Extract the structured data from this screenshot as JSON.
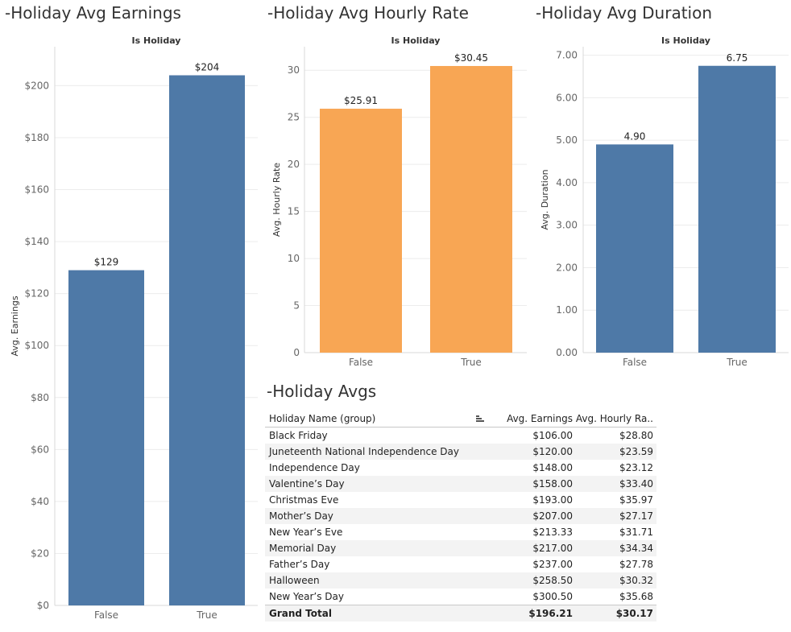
{
  "chart_data": [
    {
      "type": "bar",
      "title": "-Holiday Avg Earnings",
      "header": "Is Holiday",
      "ylabel": "Avg. Earnings",
      "categories": [
        "False",
        "True"
      ],
      "values": [
        129,
        204
      ],
      "value_labels": [
        "$129",
        "$204"
      ],
      "ylim": [
        0,
        215
      ],
      "yticks": [
        0,
        20,
        40,
        60,
        80,
        100,
        120,
        140,
        160,
        180,
        200
      ],
      "ytick_labels": [
        "$0",
        "$20",
        "$40",
        "$60",
        "$80",
        "$100",
        "$120",
        "$140",
        "$160",
        "$180",
        "$200"
      ],
      "color": "#4e79a7",
      "grid": true
    },
    {
      "type": "bar",
      "title": "-Holiday Avg Hourly Rate",
      "header": "Is Holiday",
      "ylabel": "Avg. Hourly Rate",
      "categories": [
        "False",
        "True"
      ],
      "values": [
        25.91,
        30.45
      ],
      "value_labels": [
        "$25.91",
        "$30.45"
      ],
      "ylim": [
        0,
        32.5
      ],
      "yticks": [
        0,
        5,
        10,
        15,
        20,
        25,
        30
      ],
      "ytick_labels": [
        "0",
        "5",
        "10",
        "15",
        "20",
        "25",
        "30"
      ],
      "color": "#f8a654",
      "grid": true
    },
    {
      "type": "bar",
      "title": "-Holiday Avg Duration",
      "header": "Is Holiday",
      "ylabel": "Avg. Duration",
      "categories": [
        "False",
        "True"
      ],
      "values": [
        4.9,
        6.75
      ],
      "value_labels": [
        "4.90",
        "6.75"
      ],
      "ylim": [
        0,
        7.2
      ],
      "yticks": [
        0,
        1,
        2,
        3,
        4,
        5,
        6,
        7
      ],
      "ytick_labels": [
        "0.00",
        "1.00",
        "2.00",
        "3.00",
        "4.00",
        "5.00",
        "6.00",
        "7.00"
      ],
      "color": "#4e79a7",
      "grid": true
    },
    {
      "type": "table",
      "title": "-Holiday Avgs",
      "columns": [
        "Holiday Name (group)",
        "Avg. Earnings",
        "Avg. Hourly Ra.."
      ],
      "rows": [
        [
          "Black Friday",
          "$106.00",
          "$28.80"
        ],
        [
          "Juneteenth National Independence Day",
          "$120.00",
          "$23.59"
        ],
        [
          "Independence Day",
          "$148.00",
          "$23.12"
        ],
        [
          "Valentine’s Day",
          "$158.00",
          "$33.40"
        ],
        [
          "Christmas Eve",
          "$193.00",
          "$35.97"
        ],
        [
          "Mother’s Day",
          "$207.00",
          "$27.17"
        ],
        [
          "New Year’s Eve",
          "$213.33",
          "$31.71"
        ],
        [
          "Memorial Day",
          "$217.00",
          "$34.34"
        ],
        [
          "Father’s Day",
          "$237.00",
          "$27.78"
        ],
        [
          "Halloween",
          "$258.50",
          "$30.32"
        ],
        [
          "New Year’s Day",
          "$300.50",
          "$35.68"
        ]
      ],
      "total": [
        "Grand Total",
        "$196.21",
        "$30.17"
      ]
    }
  ]
}
